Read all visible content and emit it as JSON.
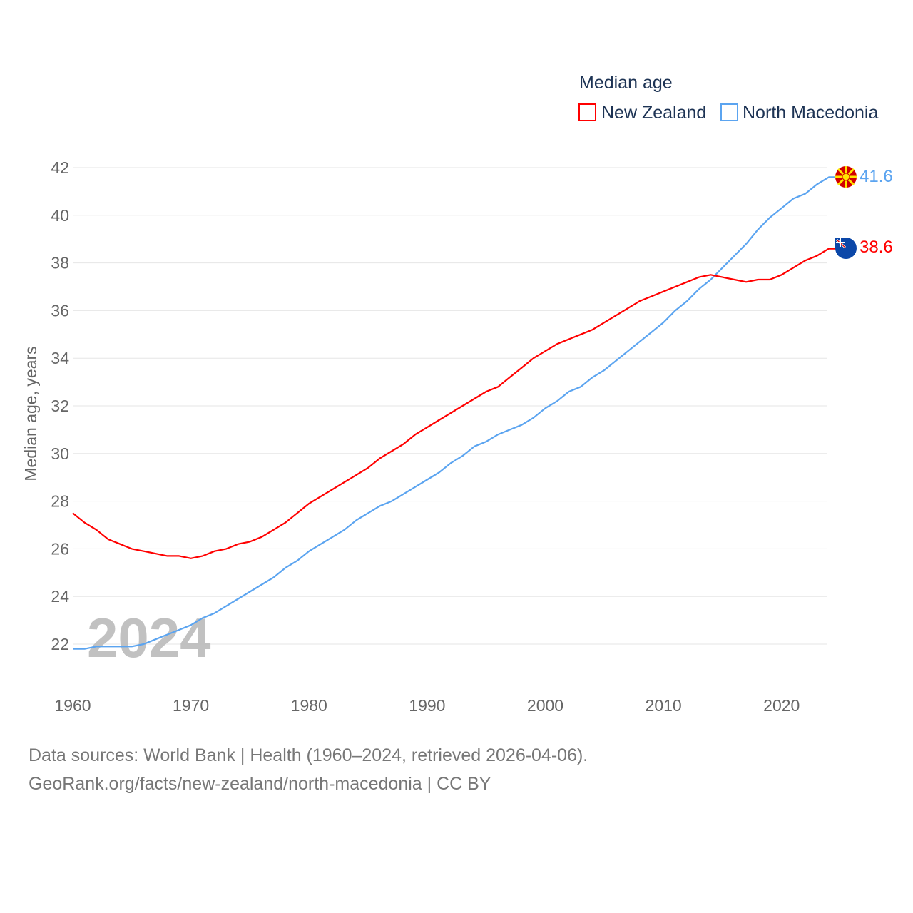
{
  "chart_data": {
    "type": "line",
    "title": "Median age",
    "xlabel": "",
    "ylabel": "Median age, years",
    "xlim": [
      1960,
      2024
    ],
    "ylim": [
      21,
      42
    ],
    "grid": true,
    "legend_placement": "top-right",
    "yticks": [
      22,
      24,
      26,
      28,
      30,
      32,
      34,
      36,
      38,
      40,
      42
    ],
    "xticks": [
      1960,
      1970,
      1980,
      1990,
      2000,
      2010,
      2020
    ],
    "year_watermark": "2024",
    "x": [
      1960,
      1961,
      1962,
      1963,
      1964,
      1965,
      1966,
      1967,
      1968,
      1969,
      1970,
      1971,
      1972,
      1973,
      1974,
      1975,
      1976,
      1977,
      1978,
      1979,
      1980,
      1981,
      1982,
      1983,
      1984,
      1985,
      1986,
      1987,
      1988,
      1989,
      1990,
      1991,
      1992,
      1993,
      1994,
      1995,
      1996,
      1997,
      1998,
      1999,
      2000,
      2001,
      2002,
      2003,
      2004,
      2005,
      2006,
      2007,
      2008,
      2009,
      2010,
      2011,
      2012,
      2013,
      2014,
      2015,
      2016,
      2017,
      2018,
      2019,
      2020,
      2021,
      2022,
      2023,
      2024
    ],
    "series": [
      {
        "name": "New Zealand",
        "color": "#ff0000",
        "end_label": "38.6",
        "values": [
          27.5,
          27.1,
          26.8,
          26.4,
          26.2,
          26.0,
          25.9,
          25.8,
          25.7,
          25.7,
          25.6,
          25.7,
          25.9,
          26.0,
          26.2,
          26.3,
          26.5,
          26.8,
          27.1,
          27.5,
          27.9,
          28.2,
          28.5,
          28.8,
          29.1,
          29.4,
          29.8,
          30.1,
          30.4,
          30.8,
          31.1,
          31.4,
          31.7,
          32.0,
          32.3,
          32.6,
          32.8,
          33.2,
          33.6,
          34.0,
          34.3,
          34.6,
          34.8,
          35.0,
          35.2,
          35.5,
          35.8,
          36.1,
          36.4,
          36.6,
          36.8,
          37.0,
          37.2,
          37.4,
          37.5,
          37.4,
          37.3,
          37.2,
          37.3,
          37.3,
          37.5,
          37.8,
          38.1,
          38.3,
          38.6
        ]
      },
      {
        "name": "North Macedonia",
        "color": "#5ba4f0",
        "end_label": "41.6",
        "values": [
          21.8,
          21.8,
          21.9,
          21.9,
          21.9,
          21.9,
          22.0,
          22.2,
          22.4,
          22.6,
          22.8,
          23.1,
          23.3,
          23.6,
          23.9,
          24.2,
          24.5,
          24.8,
          25.2,
          25.5,
          25.9,
          26.2,
          26.5,
          26.8,
          27.2,
          27.5,
          27.8,
          28.0,
          28.3,
          28.6,
          28.9,
          29.2,
          29.6,
          29.9,
          30.3,
          30.5,
          30.8,
          31.0,
          31.2,
          31.5,
          31.9,
          32.2,
          32.6,
          32.8,
          33.2,
          33.5,
          33.9,
          34.3,
          34.7,
          35.1,
          35.5,
          36.0,
          36.4,
          36.9,
          37.3,
          37.8,
          38.3,
          38.8,
          39.4,
          39.9,
          40.3,
          40.7,
          40.9,
          41.3,
          41.6
        ]
      }
    ]
  },
  "footer": {
    "line1": "Data sources: World Bank | Health (1960–2024, retrieved 2026-04-06).",
    "line2": "GeoRank.org/facts/new-zealand/north-macedonia | CC BY"
  }
}
